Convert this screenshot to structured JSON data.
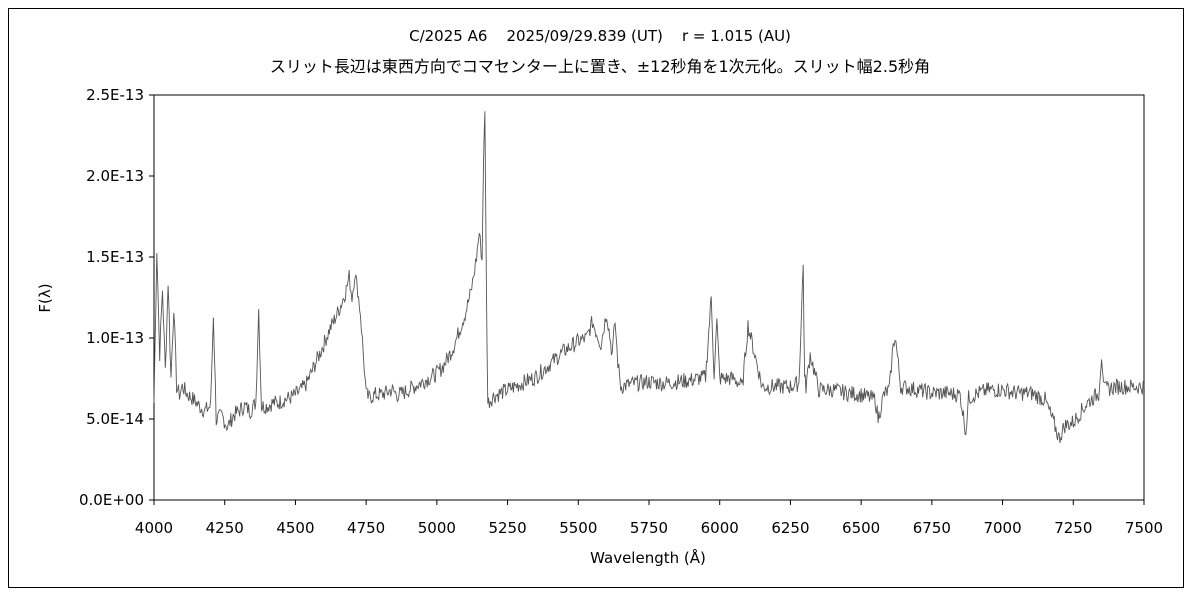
{
  "chart_data": {
    "type": "line",
    "title": "C/2025 A6    2025/09/29.839 (UT)    r = 1.015 (AU)",
    "subtitle": "スリット長辺は東西方向でコマセンター上に置き、±12秒角を1次元化。スリット幅2.5秒角",
    "xlabel": "Wavelength (Å)",
    "ylabel": "F(λ)",
    "xlim": [
      4000,
      7500
    ],
    "ylim": [
      0,
      2.5e-13
    ],
    "x_ticks": [
      "4000",
      "4250",
      "4500",
      "4750",
      "5000",
      "5250",
      "5500",
      "5750",
      "6000",
      "6250",
      "6500",
      "6750",
      "7000",
      "7250",
      "7500"
    ],
    "y_ticks": [
      "0.0E+00",
      "5.0E-14",
      "1.0E-13",
      "1.5E-13",
      "2.0E-13",
      "2.5E-13"
    ],
    "grid": false,
    "legend": "none",
    "line_color": "#555555",
    "series": [
      {
        "x": [
          4000,
          4010,
          4020,
          4030,
          4040,
          4050,
          4060,
          4070,
          4080,
          4090,
          4100,
          4120,
          4140,
          4160,
          4180,
          4200,
          4210,
          4220,
          4240,
          4260,
          4280,
          4300,
          4320,
          4340,
          4360,
          4370,
          4380,
          4400,
          4420,
          4440,
          4460,
          4480,
          4500,
          4520,
          4540,
          4560,
          4580,
          4600,
          4620,
          4640,
          4660,
          4680,
          4690,
          4700,
          4710,
          4720,
          4730,
          4740,
          4750,
          4760,
          4780,
          4800,
          4820,
          4840,
          4860,
          4880,
          4900,
          4920,
          4940,
          4960,
          4980,
          5000,
          5020,
          5040,
          5060,
          5080,
          5100,
          5120,
          5130,
          5140,
          5150,
          5160,
          5165,
          5170,
          5175,
          5180,
          5200,
          5250,
          5300,
          5350,
          5400,
          5450,
          5500,
          5530,
          5550,
          5580,
          5600,
          5620,
          5630,
          5640,
          5650,
          5700,
          5750,
          5800,
          5850,
          5900,
          5950,
          5970,
          5980,
          5990,
          6000,
          6050,
          6080,
          6100,
          6150,
          6200,
          6250,
          6280,
          6295,
          6300,
          6305,
          6320,
          6350,
          6400,
          6450,
          6500,
          6550,
          6560,
          6580,
          6600,
          6610,
          6620,
          6640,
          6700,
          6750,
          6800,
          6850,
          6870,
          6880,
          6900,
          6950,
          7000,
          7050,
          7100,
          7150,
          7180,
          7200,
          7220,
          7250,
          7300,
          7340,
          7350,
          7360,
          7400,
          7450,
          7500
        ],
        "y": [
          6e-14,
          1.55e-13,
          9e-14,
          1.3e-13,
          8e-14,
          1.35e-13,
          7.5e-14,
          1.2e-13,
          7e-14,
          6.5e-14,
          7e-14,
          6.5e-14,
          6.2e-14,
          5.8e-14,
          5.5e-14,
          5.8e-14,
          1.15e-13,
          5e-14,
          5.2e-14,
          4.5e-14,
          5.2e-14,
          5.5e-14,
          5.8e-14,
          5.5e-14,
          6e-14,
          1.18e-13,
          5.8e-14,
          5.8e-14,
          6e-14,
          6e-14,
          6.2e-14,
          6.3e-14,
          6.5e-14,
          6.8e-14,
          7.2e-14,
          8e-14,
          8.8e-14,
          9.6e-14,
          1.05e-13,
          1.12e-13,
          1.2e-13,
          1.3e-13,
          1.38e-13,
          1.25e-13,
          1.4e-13,
          1.3e-13,
          1.15e-13,
          9e-14,
          6.5e-14,
          6.3e-14,
          6.5e-14,
          6.5e-14,
          6.6e-14,
          6.8e-14,
          6.5e-14,
          6.6e-14,
          6.8e-14,
          7e-14,
          7.2e-14,
          7.4e-14,
          7.6e-14,
          7.8e-14,
          8.2e-14,
          8.8e-14,
          9.5e-14,
          1.05e-13,
          1.15e-13,
          1.28e-13,
          1.38e-13,
          1.5e-13,
          1.65e-13,
          1.48e-13,
          2.1e-13,
          2.38e-13,
          1.3e-13,
          6e-14,
          6.4e-14,
          6.8e-14,
          7.2e-14,
          7.6e-14,
          8.4e-14,
          9.2e-14,
          9.8e-14,
          1e-13,
          1.1e-13,
          9.6e-14,
          1.16e-13,
          9e-14,
          1.1e-13,
          8.5e-14,
          7e-14,
          7.2e-14,
          7.3e-14,
          7.2e-14,
          7.3e-14,
          7.4e-14,
          7.6e-14,
          1.25e-13,
          7.8e-14,
          1.1e-13,
          7.5e-14,
          7.5e-14,
          7e-14,
          1.08e-13,
          7e-14,
          7e-14,
          7e-14,
          7.2e-14,
          1.45e-13,
          7.5e-14,
          7e-14,
          9e-14,
          6.8e-14,
          6.8e-14,
          6.6e-14,
          6.5e-14,
          6.2e-14,
          5e-14,
          6.5e-14,
          6.8e-14,
          9e-14,
          1.02e-13,
          7e-14,
          6.8e-14,
          6.6e-14,
          6.6e-14,
          6.5e-14,
          4.2e-14,
          6.3e-14,
          6.5e-14,
          6.8e-14,
          6.8e-14,
          6.6e-14,
          6.6e-14,
          6.2e-14,
          4.8e-14,
          3.8e-14,
          4.6e-14,
          4.8e-14,
          6e-14,
          6.6e-14,
          9e-14,
          6.8e-14,
          7e-14,
          7e-14,
          7e-14
        ]
      }
    ]
  }
}
